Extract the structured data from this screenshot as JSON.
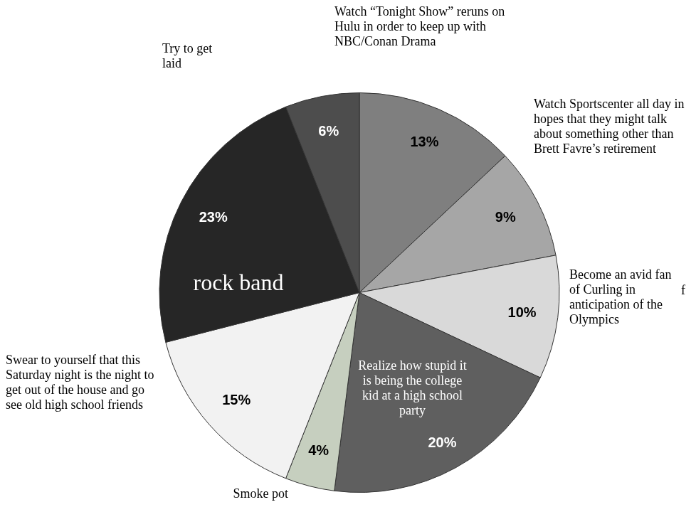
{
  "chart_data": {
    "type": "pie",
    "categories": [
      "Watch “Tonight Show” reruns on Hulu in order to keep up with NBC/Conan Drama",
      "Watch Sportscenter all day in hopes that they might talk about something other than Brett Favre’s retirement",
      "Become an avid fan of Curling in anticipation of the Olympics",
      "Realize how stupid it is being the college kid at a high school party",
      "Smoke pot",
      "Swear to yourself that this Saturday night is the night to get out of the house and go see old high school friends",
      "rock band",
      "Try to get laid"
    ],
    "values": [
      13,
      9,
      10,
      20,
      4,
      15,
      23,
      6
    ],
    "value_labels": [
      "13%",
      "9%",
      "10%",
      "20%",
      "4%",
      "15%",
      "23%",
      "6%"
    ],
    "colors": [
      "#7f7f7f",
      "#a6a6a6",
      "#d9d9d9",
      "#5f5f5f",
      "#c6cfbf",
      "#f2f2f2",
      "#262626",
      "#4d4d4d"
    ],
    "data_labels": true,
    "annotations": [
      "f"
    ]
  }
}
